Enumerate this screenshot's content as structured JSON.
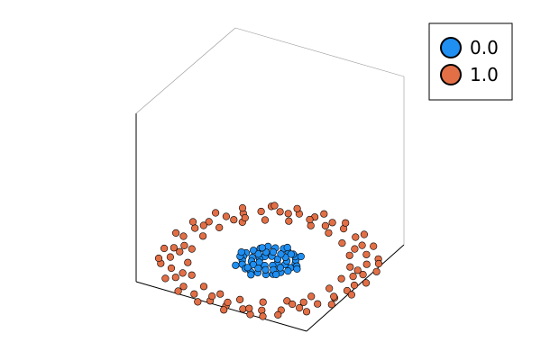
{
  "chart_data": {
    "type": "scatter3d",
    "title": "",
    "xlabel": "",
    "ylabel": "",
    "zlabel": "",
    "grid": false,
    "axes_visible": false,
    "legend_position": "top-right",
    "series": [
      {
        "name": "0.0",
        "color": "#1f8ff2",
        "marker": "circle",
        "points": [
          [
            0.26,
            -0.01,
            0
          ],
          [
            0.26,
            0.09,
            0
          ],
          [
            0.23,
            0.15,
            0
          ],
          [
            0.19,
            0.21,
            0
          ],
          [
            0.15,
            0.24,
            0
          ],
          [
            0.07,
            0.27,
            0
          ],
          [
            0.01,
            0.29,
            0
          ],
          [
            -0.07,
            0.26,
            0
          ],
          [
            -0.15,
            0.25,
            0
          ],
          [
            -0.2,
            0.18,
            0
          ],
          [
            -0.24,
            0.11,
            0
          ],
          [
            -0.28,
            0.03,
            0
          ],
          [
            -0.27,
            -0.05,
            0
          ],
          [
            -0.24,
            -0.12,
            0
          ],
          [
            -0.2,
            -0.19,
            0
          ],
          [
            -0.13,
            -0.25,
            0
          ],
          [
            -0.05,
            -0.28,
            0
          ],
          [
            0.02,
            -0.26,
            0
          ],
          [
            0.11,
            -0.25,
            0
          ],
          [
            0.17,
            -0.21,
            0
          ],
          [
            0.22,
            -0.14,
            0
          ],
          [
            0.27,
            -0.08,
            0
          ],
          [
            0.1,
            0,
            0
          ],
          [
            0.06,
            0.08,
            0
          ],
          [
            -0.02,
            0.1,
            0
          ],
          [
            -0.08,
            0.06,
            0
          ],
          [
            -0.1,
            -0.01,
            0
          ],
          [
            -0.07,
            -0.07,
            0
          ],
          [
            0.01,
            -0.1,
            0
          ],
          [
            0.08,
            -0.06,
            0
          ],
          [
            0.18,
            0.02,
            0
          ],
          [
            0.16,
            0.09,
            0
          ],
          [
            0.11,
            0.15,
            0
          ],
          [
            0.04,
            0.18,
            0
          ],
          [
            -0.05,
            0.18,
            0
          ],
          [
            -0.11,
            0.14,
            0
          ],
          [
            -0.16,
            0.07,
            0
          ],
          [
            -0.18,
            -0.02,
            0
          ],
          [
            -0.15,
            -0.09,
            0
          ],
          [
            -0.1,
            -0.14,
            0
          ],
          [
            -0.02,
            -0.18,
            0
          ],
          [
            0.06,
            -0.17,
            0
          ],
          [
            0.13,
            -0.13,
            0
          ],
          [
            0.17,
            -0.06,
            0
          ],
          [
            0.3,
            0.05,
            0
          ],
          [
            -0.3,
            -0.06,
            0
          ],
          [
            0.2,
            -0.2,
            0
          ],
          [
            -0.19,
            0.2,
            0
          ],
          [
            0.13,
            0.23,
            0
          ],
          [
            -0.12,
            -0.22,
            0
          ],
          [
            0.33,
            0,
            0
          ],
          [
            -0.33,
            0.02,
            0
          ],
          [
            0.24,
            0.24,
            0
          ],
          [
            -0.25,
            -0.24,
            0
          ],
          [
            0.03,
            0.33,
            0
          ],
          [
            -0.02,
            -0.33,
            0
          ]
        ]
      },
      {
        "name": "1.0",
        "color": "#e26f46",
        "marker": "circle",
        "points": [
          [
            1,
            0,
            0
          ],
          [
            0.97,
            0.23,
            0
          ],
          [
            0.9,
            0.43,
            0
          ],
          [
            0.8,
            0.6,
            0
          ],
          [
            0.67,
            0.74,
            0
          ],
          [
            0.53,
            0.85,
            0
          ],
          [
            0.34,
            0.94,
            0
          ],
          [
            0.18,
            0.99,
            0
          ],
          [
            -0.03,
            1,
            0
          ],
          [
            -0.2,
            0.98,
            0
          ],
          [
            -0.39,
            0.92,
            0
          ],
          [
            -0.56,
            0.83,
            0
          ],
          [
            -0.7,
            0.71,
            0
          ],
          [
            -0.82,
            0.57,
            0
          ],
          [
            -0.92,
            0.39,
            0
          ],
          [
            -0.98,
            0.21,
            0
          ],
          [
            -1,
            0.01,
            0
          ],
          [
            -0.97,
            -0.24,
            0
          ],
          [
            -0.91,
            -0.42,
            0
          ],
          [
            -0.79,
            -0.61,
            0
          ],
          [
            -0.66,
            -0.75,
            0
          ],
          [
            -0.5,
            -0.87,
            0
          ],
          [
            -0.33,
            -0.95,
            0
          ],
          [
            -0.12,
            -0.99,
            0
          ],
          [
            0.07,
            -1,
            0
          ],
          [
            0.25,
            -0.97,
            0
          ],
          [
            0.43,
            -0.9,
            0
          ],
          [
            0.6,
            -0.8,
            0
          ],
          [
            0.74,
            -0.67,
            0
          ],
          [
            0.86,
            -0.51,
            0
          ],
          [
            0.95,
            -0.32,
            0
          ],
          [
            0.99,
            -0.13,
            0
          ],
          [
            0.82,
            0.05,
            0
          ],
          [
            0.78,
            0.3,
            0
          ],
          [
            0.66,
            0.5,
            0
          ],
          [
            0.47,
            0.68,
            0
          ],
          [
            0.25,
            0.79,
            0
          ],
          [
            0.02,
            0.83,
            0
          ],
          [
            -0.22,
            0.8,
            0
          ],
          [
            -0.44,
            0.7,
            0
          ],
          [
            -0.62,
            0.55,
            0
          ],
          [
            -0.77,
            0.34,
            0
          ],
          [
            -0.83,
            0.11,
            0
          ],
          [
            -0.8,
            -0.17,
            0
          ],
          [
            -0.7,
            -0.43,
            0
          ],
          [
            -0.54,
            -0.63,
            0
          ],
          [
            -0.32,
            -0.77,
            0
          ],
          [
            -0.1,
            -0.82,
            0
          ],
          [
            0.13,
            -0.82,
            0
          ],
          [
            0.36,
            -0.75,
            0
          ],
          [
            0.56,
            -0.61,
            0
          ],
          [
            0.73,
            -0.41,
            0
          ],
          [
            0.81,
            -0.18,
            0
          ],
          [
            1.08,
            0.1,
            0
          ],
          [
            1.06,
            0.35,
            0
          ],
          [
            0.95,
            0.58,
            0
          ],
          [
            0.78,
            0.78,
            0
          ],
          [
            0.58,
            0.94,
            0
          ],
          [
            0.3,
            1.05,
            0
          ],
          [
            0.02,
            1.1,
            0
          ],
          [
            -0.27,
            1.06,
            0
          ],
          [
            -0.52,
            0.97,
            0
          ],
          [
            -0.76,
            0.8,
            0
          ],
          [
            -0.95,
            0.58,
            0
          ],
          [
            -1.06,
            0.31,
            0
          ],
          [
            -1.1,
            0.03,
            0
          ],
          [
            -1.05,
            -0.3,
            0
          ],
          [
            -0.93,
            -0.58,
            0
          ],
          [
            -0.74,
            -0.82,
            0
          ],
          [
            -0.5,
            -0.98,
            0
          ],
          [
            -0.22,
            -1.07,
            0
          ],
          [
            0.09,
            -1.08,
            0
          ],
          [
            0.37,
            -1.03,
            0
          ],
          [
            0.62,
            -0.9,
            0
          ],
          [
            0.84,
            -0.7,
            0
          ],
          [
            0.99,
            -0.45,
            0
          ],
          [
            1.07,
            -0.18,
            0
          ],
          [
            0.9,
            0.15,
            0
          ],
          [
            -0.9,
            -0.15,
            0
          ],
          [
            0.15,
            0.9,
            0
          ],
          [
            -0.15,
            -0.9,
            0
          ],
          [
            0.64,
            0.64,
            0
          ],
          [
            -0.64,
            -0.64,
            0
          ],
          [
            0.64,
            -0.64,
            0
          ],
          [
            -0.64,
            0.64,
            0
          ],
          [
            0.93,
            -0.3,
            0
          ],
          [
            -0.93,
            0.3,
            0
          ],
          [
            0.3,
            -0.93,
            0
          ],
          [
            -0.3,
            0.93,
            0
          ],
          [
            1.0,
            0.5,
            0
          ],
          [
            -1.0,
            -0.5,
            0
          ],
          [
            0.5,
            -1.0,
            0
          ],
          [
            -0.5,
            1.0,
            0
          ],
          [
            0.88,
            0.28,
            0
          ],
          [
            -0.88,
            -0.28,
            0
          ],
          [
            0.05,
            -0.93,
            0
          ],
          [
            -0.05,
            0.93,
            0
          ],
          [
            0.72,
            -0.55,
            0
          ],
          [
            -0.72,
            0.55,
            0
          ]
        ]
      }
    ]
  }
}
